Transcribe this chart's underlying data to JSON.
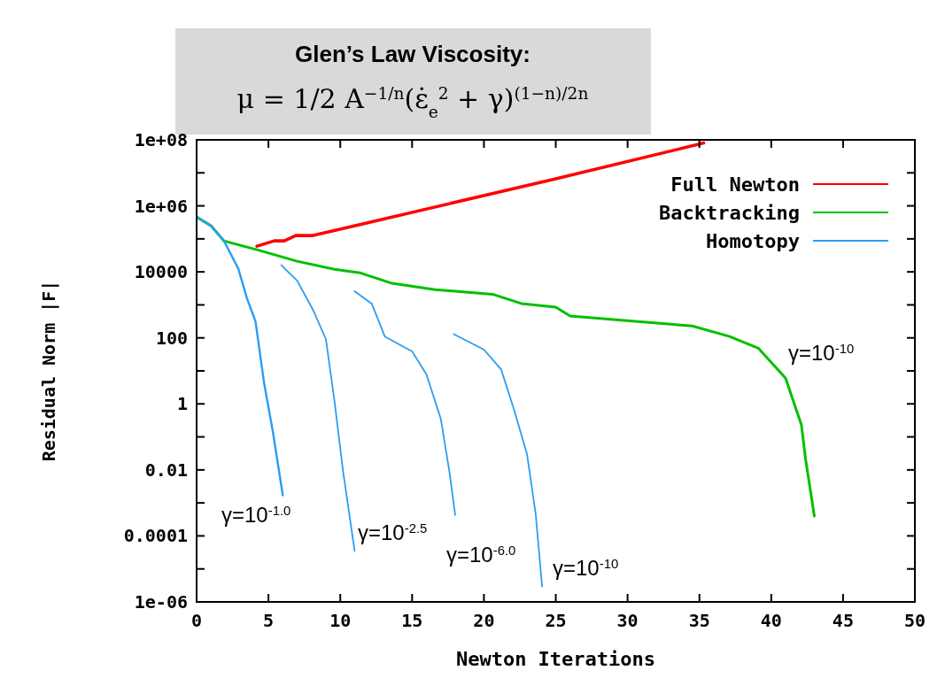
{
  "chart_data": {
    "type": "line",
    "xlabel": "Newton Iterations",
    "ylabel": "Residual Norm |F|",
    "log": "y",
    "legend": "top right",
    "xlim": [
      0,
      50
    ],
    "xticks": [
      0,
      5,
      10,
      15,
      20,
      25,
      30,
      35,
      40,
      45,
      50
    ],
    "ylim": [
      1e-06,
      100000000.0
    ],
    "yticks": [
      {
        "value": 1e-06,
        "label": "1e-06"
      },
      {
        "value": 1e-05,
        "label": null
      },
      {
        "value": 0.0001,
        "label": "0.0001"
      },
      {
        "value": 0.001,
        "label": null
      },
      {
        "value": 0.01,
        "label": "0.01"
      },
      {
        "value": 0.1,
        "label": null
      },
      1,
      {
        "value": 10,
        "label": null
      },
      100,
      {
        "value": 1000,
        "label": null
      },
      10000,
      {
        "value": 100000,
        "label": null
      },
      {
        "value": 1000000,
        "label": "1e+06"
      },
      {
        "value": 10000000,
        "label": null
      },
      {
        "value": 100000000,
        "label": "1e+08"
      }
    ],
    "annotations": [
      "Glen’s Law Viscosity:",
      "μ = 1/2 A$^{−1/n}$(ε̇$_{e}$$^{2}$ + γ)$^{(1−n)/2n}$",
      "γ=10$^{-1.0}$",
      "γ=10$^{-2.5}$",
      "γ=10$^{-6.0}$",
      "γ=10$^{-10}$",
      "γ=10$^{-10}$"
    ],
    "series": [
      {
        "name": "Full Newton",
        "color": "#ff0000",
        "x": [
          4.2,
          5.4,
          6.1,
          6.9,
          8.1,
          25,
          35.3
        ],
        "values": [
          60000,
          87000,
          87000,
          126000,
          126000,
          6600000,
          80000000
        ]
      },
      {
        "name": "Backtracking",
        "color": "#00c000",
        "x": [
          0,
          1,
          1.9,
          4.2,
          7.0,
          9.6,
          11.4,
          13.6,
          16.6,
          20.6,
          22.6,
          25,
          26,
          30.5,
          34.5,
          37.1,
          39.1,
          41,
          42.1,
          42.4,
          43
        ],
        "values": [
          460000,
          250000,
          87000,
          47000,
          21000,
          12000,
          9300,
          4500,
          2900,
          2100,
          1100,
          850,
          460,
          316,
          230,
          110,
          49,
          6,
          0.23,
          0.02,
          0.0004
        ]
      },
      {
        "name": "Homotopy",
        "color": "#2a9df4",
        "x": [
          0,
          1,
          1.9,
          2.9,
          3.5,
          4.1,
          4.7,
          5.3,
          6.0
        ],
        "values": [
          460000,
          250000,
          87000,
          12600,
          1600,
          316,
          4.2,
          0.15,
          0.0017
        ]
      },
      {
        "color": "#2a9df4",
        "x": [
          5.9,
          7.0,
          8.1,
          9.0,
          9.6,
          10.2,
          11.0
        ],
        "values": [
          16000,
          5400,
          710,
          91,
          1.2,
          0.0087,
          3.5e-05
        ]
      },
      {
        "color": "#2a9df4",
        "x": [
          11.0,
          12.2,
          13.1,
          15.0,
          16.0,
          17.0,
          17.6,
          18.0
        ],
        "values": [
          2600,
          1070,
          110,
          39,
          7.8,
          0.35,
          0.0087,
          0.00043
        ]
      },
      {
        "color": "#2a9df4",
        "x": [
          17.9,
          20.0,
          21.2,
          22.1,
          23.0,
          23.6,
          24.05
        ],
        "values": [
          130,
          44,
          11,
          0.66,
          0.03,
          0.00048,
          2.9e-06
        ]
      }
    ]
  }
}
